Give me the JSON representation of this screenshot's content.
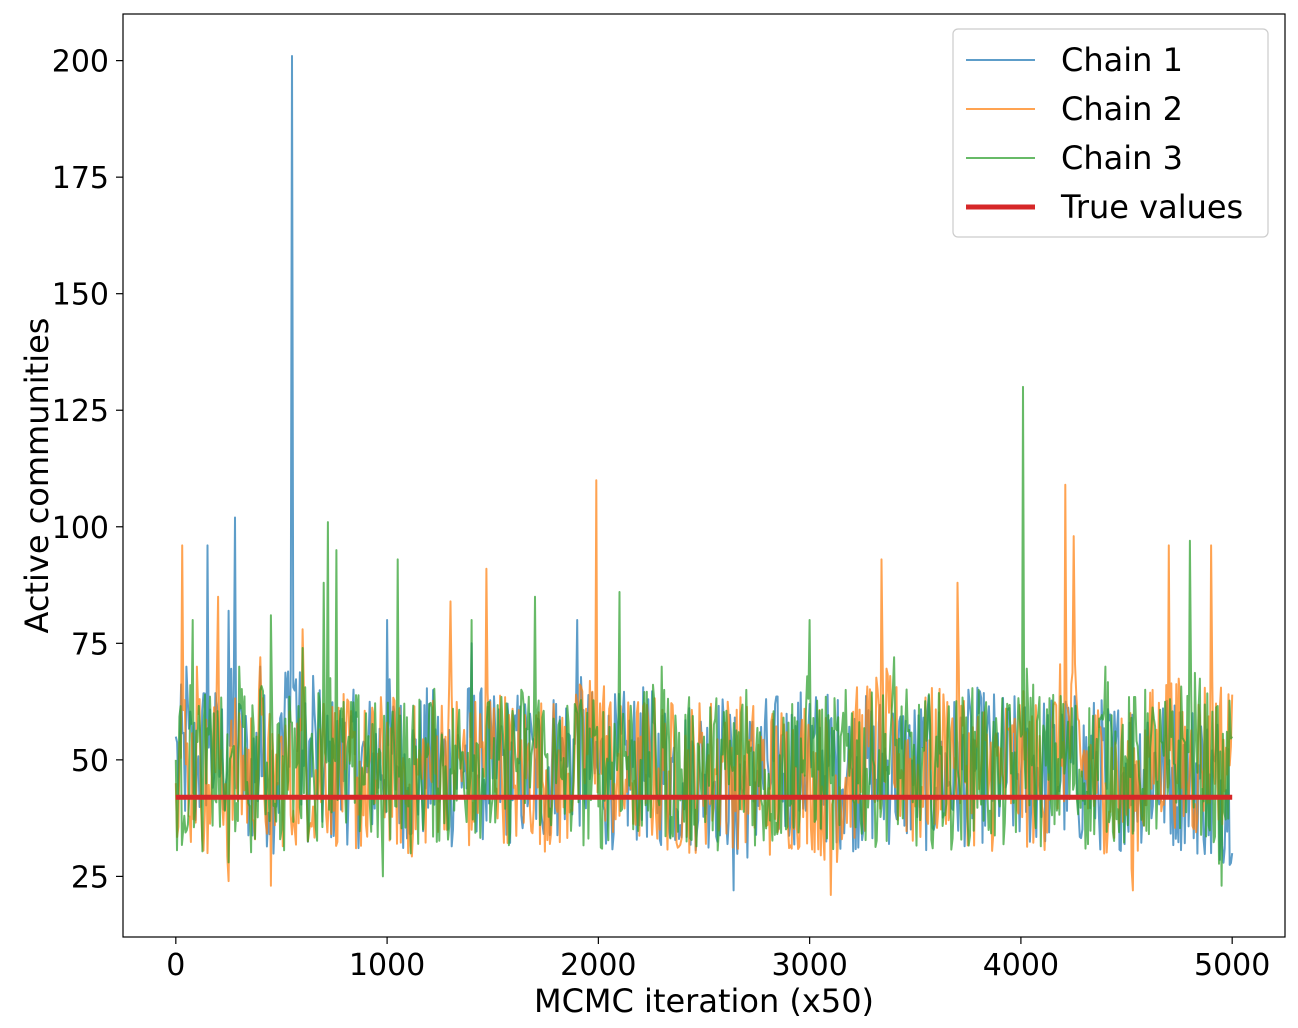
{
  "chart_data": {
    "type": "line",
    "title": "",
    "xlabel": "MCMC iteration (x50)",
    "ylabel": "Active communities",
    "xlim": [
      -250,
      5250
    ],
    "ylim": [
      12,
      210
    ],
    "x_ticks": [
      0,
      1000,
      2000,
      3000,
      4000,
      5000
    ],
    "y_ticks": [
      25,
      50,
      75,
      100,
      125,
      150,
      175,
      200
    ],
    "grid": false,
    "legend_position": "top-right",
    "series": [
      {
        "name": "Chain 1",
        "color": "#1f77b4",
        "x": [
          0,
          50,
          100,
          150,
          200,
          250,
          280,
          300,
          350,
          400,
          450,
          500,
          550,
          600,
          650,
          700,
          800,
          900,
          1000,
          1100,
          1200,
          1300,
          1400,
          1500,
          1600,
          1700,
          1800,
          1900,
          2000,
          2200,
          2400,
          2600,
          2640,
          2800,
          3000,
          3200,
          3400,
          3600,
          3800,
          4000,
          4200,
          4400,
          4600,
          4800,
          4900,
          5000
        ],
        "values": [
          55,
          70,
          48,
          96,
          58,
          82,
          102,
          62,
          45,
          70,
          40,
          60,
          201,
          52,
          68,
          46,
          58,
          50,
          80,
          44,
          62,
          48,
          75,
          46,
          58,
          50,
          62,
          80,
          47,
          60,
          45,
          55,
          22,
          50,
          62,
          48,
          55,
          44,
          60,
          47,
          55,
          45,
          58,
          46,
          30,
          30
        ]
      },
      {
        "name": "Chain 2",
        "color": "#ff7f0e",
        "x": [
          0,
          30,
          60,
          100,
          150,
          200,
          250,
          300,
          350,
          400,
          450,
          500,
          550,
          600,
          650,
          700,
          800,
          900,
          1000,
          1100,
          1200,
          1300,
          1400,
          1470,
          1600,
          1700,
          1800,
          1900,
          1990,
          2100,
          2200,
          2400,
          2600,
          2800,
          3000,
          3100,
          3200,
          3340,
          3500,
          3700,
          3760,
          3900,
          4000,
          4100,
          4210,
          4250,
          4300,
          4400,
          4530,
          4600,
          4700,
          4800,
          4900,
          5000
        ],
        "values": [
          45,
          96,
          38,
          70,
          30,
          85,
          24,
          60,
          42,
          72,
          23,
          55,
          34,
          78,
          40,
          62,
          48,
          36,
          58,
          30,
          52,
          84,
          35,
          91,
          44,
          56,
          40,
          62,
          110,
          38,
          55,
          40,
          58,
          36,
          52,
          21,
          55,
          93,
          40,
          88,
          50,
          45,
          55,
          40,
          109,
          98,
          52,
          45,
          22,
          55,
          96,
          50,
          96,
          64
        ]
      },
      {
        "name": "Chain 3",
        "color": "#2ca02c",
        "x": [
          0,
          40,
          80,
          120,
          180,
          250,
          300,
          350,
          400,
          450,
          500,
          550,
          600,
          650,
          700,
          720,
          760,
          800,
          900,
          980,
          1050,
          1100,
          1200,
          1300,
          1400,
          1500,
          1600,
          1700,
          1800,
          1900,
          2000,
          2100,
          2200,
          2300,
          2400,
          2500,
          2600,
          2700,
          2800,
          2900,
          3000,
          3100,
          3200,
          3300,
          3400,
          3500,
          3600,
          3700,
          3800,
          3900,
          4000,
          4010,
          4100,
          4200,
          4300,
          4400,
          4500,
          4600,
          4700,
          4800,
          4900,
          4950,
          5000
        ],
        "values": [
          50,
          38,
          80,
          45,
          60,
          28,
          70,
          40,
          65,
          81,
          35,
          58,
          74,
          50,
          88,
          101,
          95,
          45,
          60,
          25,
          93,
          40,
          62,
          48,
          80,
          42,
          58,
          85,
          45,
          60,
          40,
          86,
          50,
          70,
          42,
          55,
          48,
          65,
          40,
          58,
          80,
          45,
          60,
          50,
          72,
          44,
          55,
          48,
          65,
          40,
          55,
          130,
          48,
          62,
          45,
          70,
          50,
          60,
          45,
          97,
          50,
          23,
          55
        ]
      },
      {
        "name": "True values",
        "color": "#d62728",
        "x": [
          0,
          5000
        ],
        "values": [
          42,
          42
        ]
      }
    ]
  }
}
